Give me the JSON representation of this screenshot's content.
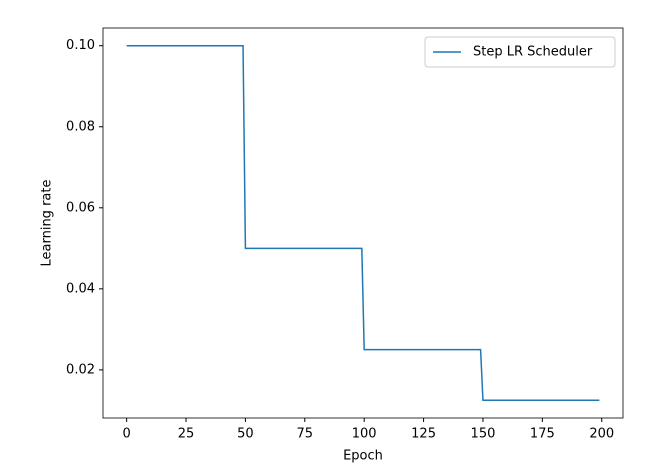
{
  "chart_data": {
    "type": "line",
    "x_label": "Epoch",
    "y_label": "Learning rate",
    "x": [
      0,
      49,
      50,
      99,
      100,
      149,
      150,
      199
    ],
    "series": [
      {
        "name": "Step LR Scheduler",
        "color": "#1f77b4",
        "values": [
          0.1,
          0.1,
          0.05,
          0.05,
          0.025,
          0.025,
          0.0125,
          0.0125
        ]
      }
    ],
    "xlim": [
      -9.95,
      208.95
    ],
    "xticks": [
      0,
      25,
      50,
      75,
      100,
      125,
      150,
      175,
      200
    ],
    "ylim": [
      0.008125,
      0.104375
    ],
    "yticks": [
      0.02,
      0.04,
      0.06,
      0.08,
      {
        "value": 0.1,
        "label": "0.10"
      }
    ],
    "legend": "upper right",
    "grid": false
  }
}
